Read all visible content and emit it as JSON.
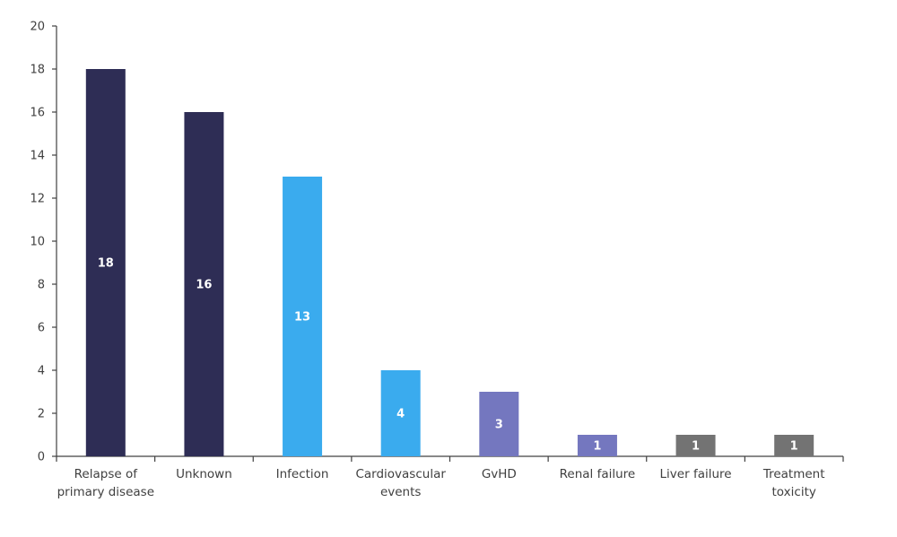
{
  "chart_data": {
    "type": "bar",
    "title": "",
    "xlabel": "",
    "ylabel": "",
    "ylim": [
      0,
      20
    ],
    "yticks": [
      "0",
      "2",
      "4",
      "6",
      "8",
      "10",
      "12",
      "14",
      "16",
      "18",
      "20"
    ],
    "grid": false,
    "categories": [
      [
        "Relapse of",
        "primary disease"
      ],
      [
        "Unknown"
      ],
      [
        "Infection"
      ],
      [
        "Cardiovascular",
        "events"
      ],
      [
        "GvHD"
      ],
      [
        "Renal failure"
      ],
      [
        "Liver failure"
      ],
      [
        "Treatment",
        "toxicity"
      ]
    ],
    "values": [
      18,
      16,
      13,
      4,
      3,
      1,
      1,
      1
    ],
    "data_labels": [
      "18",
      "16",
      "13",
      "4",
      "3",
      "1",
      "1",
      "1"
    ],
    "colors": [
      "#2E2D55",
      "#2E2D55",
      "#3AABEE",
      "#3AABEE",
      "#7477BF",
      "#7477BF",
      "#737373",
      "#737373"
    ]
  }
}
